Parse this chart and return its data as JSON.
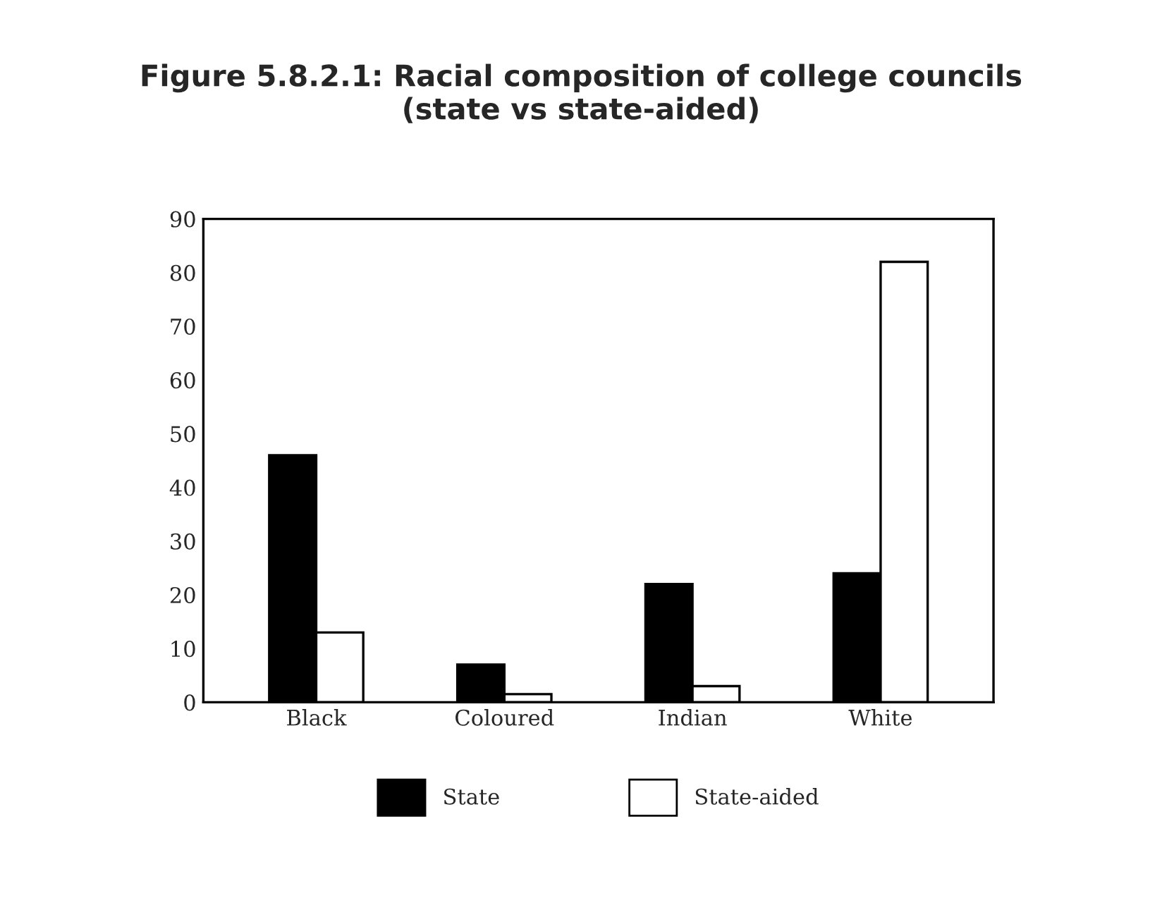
{
  "chart_data": {
    "type": "bar",
    "title": "Figure 5.8.2.1: Racial composition of college councils\n(state vs state-aided)",
    "categories": [
      "Black",
      "Coloured",
      "Indian",
      "White"
    ],
    "series": [
      {
        "name": "State",
        "color": "#000000",
        "values": [
          46,
          7,
          22,
          24
        ]
      },
      {
        "name": "State-aided",
        "color": "#ffffff",
        "values": [
          13,
          1.5,
          3,
          82
        ]
      }
    ],
    "ylim": [
      0,
      90
    ],
    "yticks": [
      0,
      10,
      20,
      30,
      40,
      50,
      60,
      70,
      80,
      90
    ],
    "grid": false,
    "legend": "bottom"
  }
}
